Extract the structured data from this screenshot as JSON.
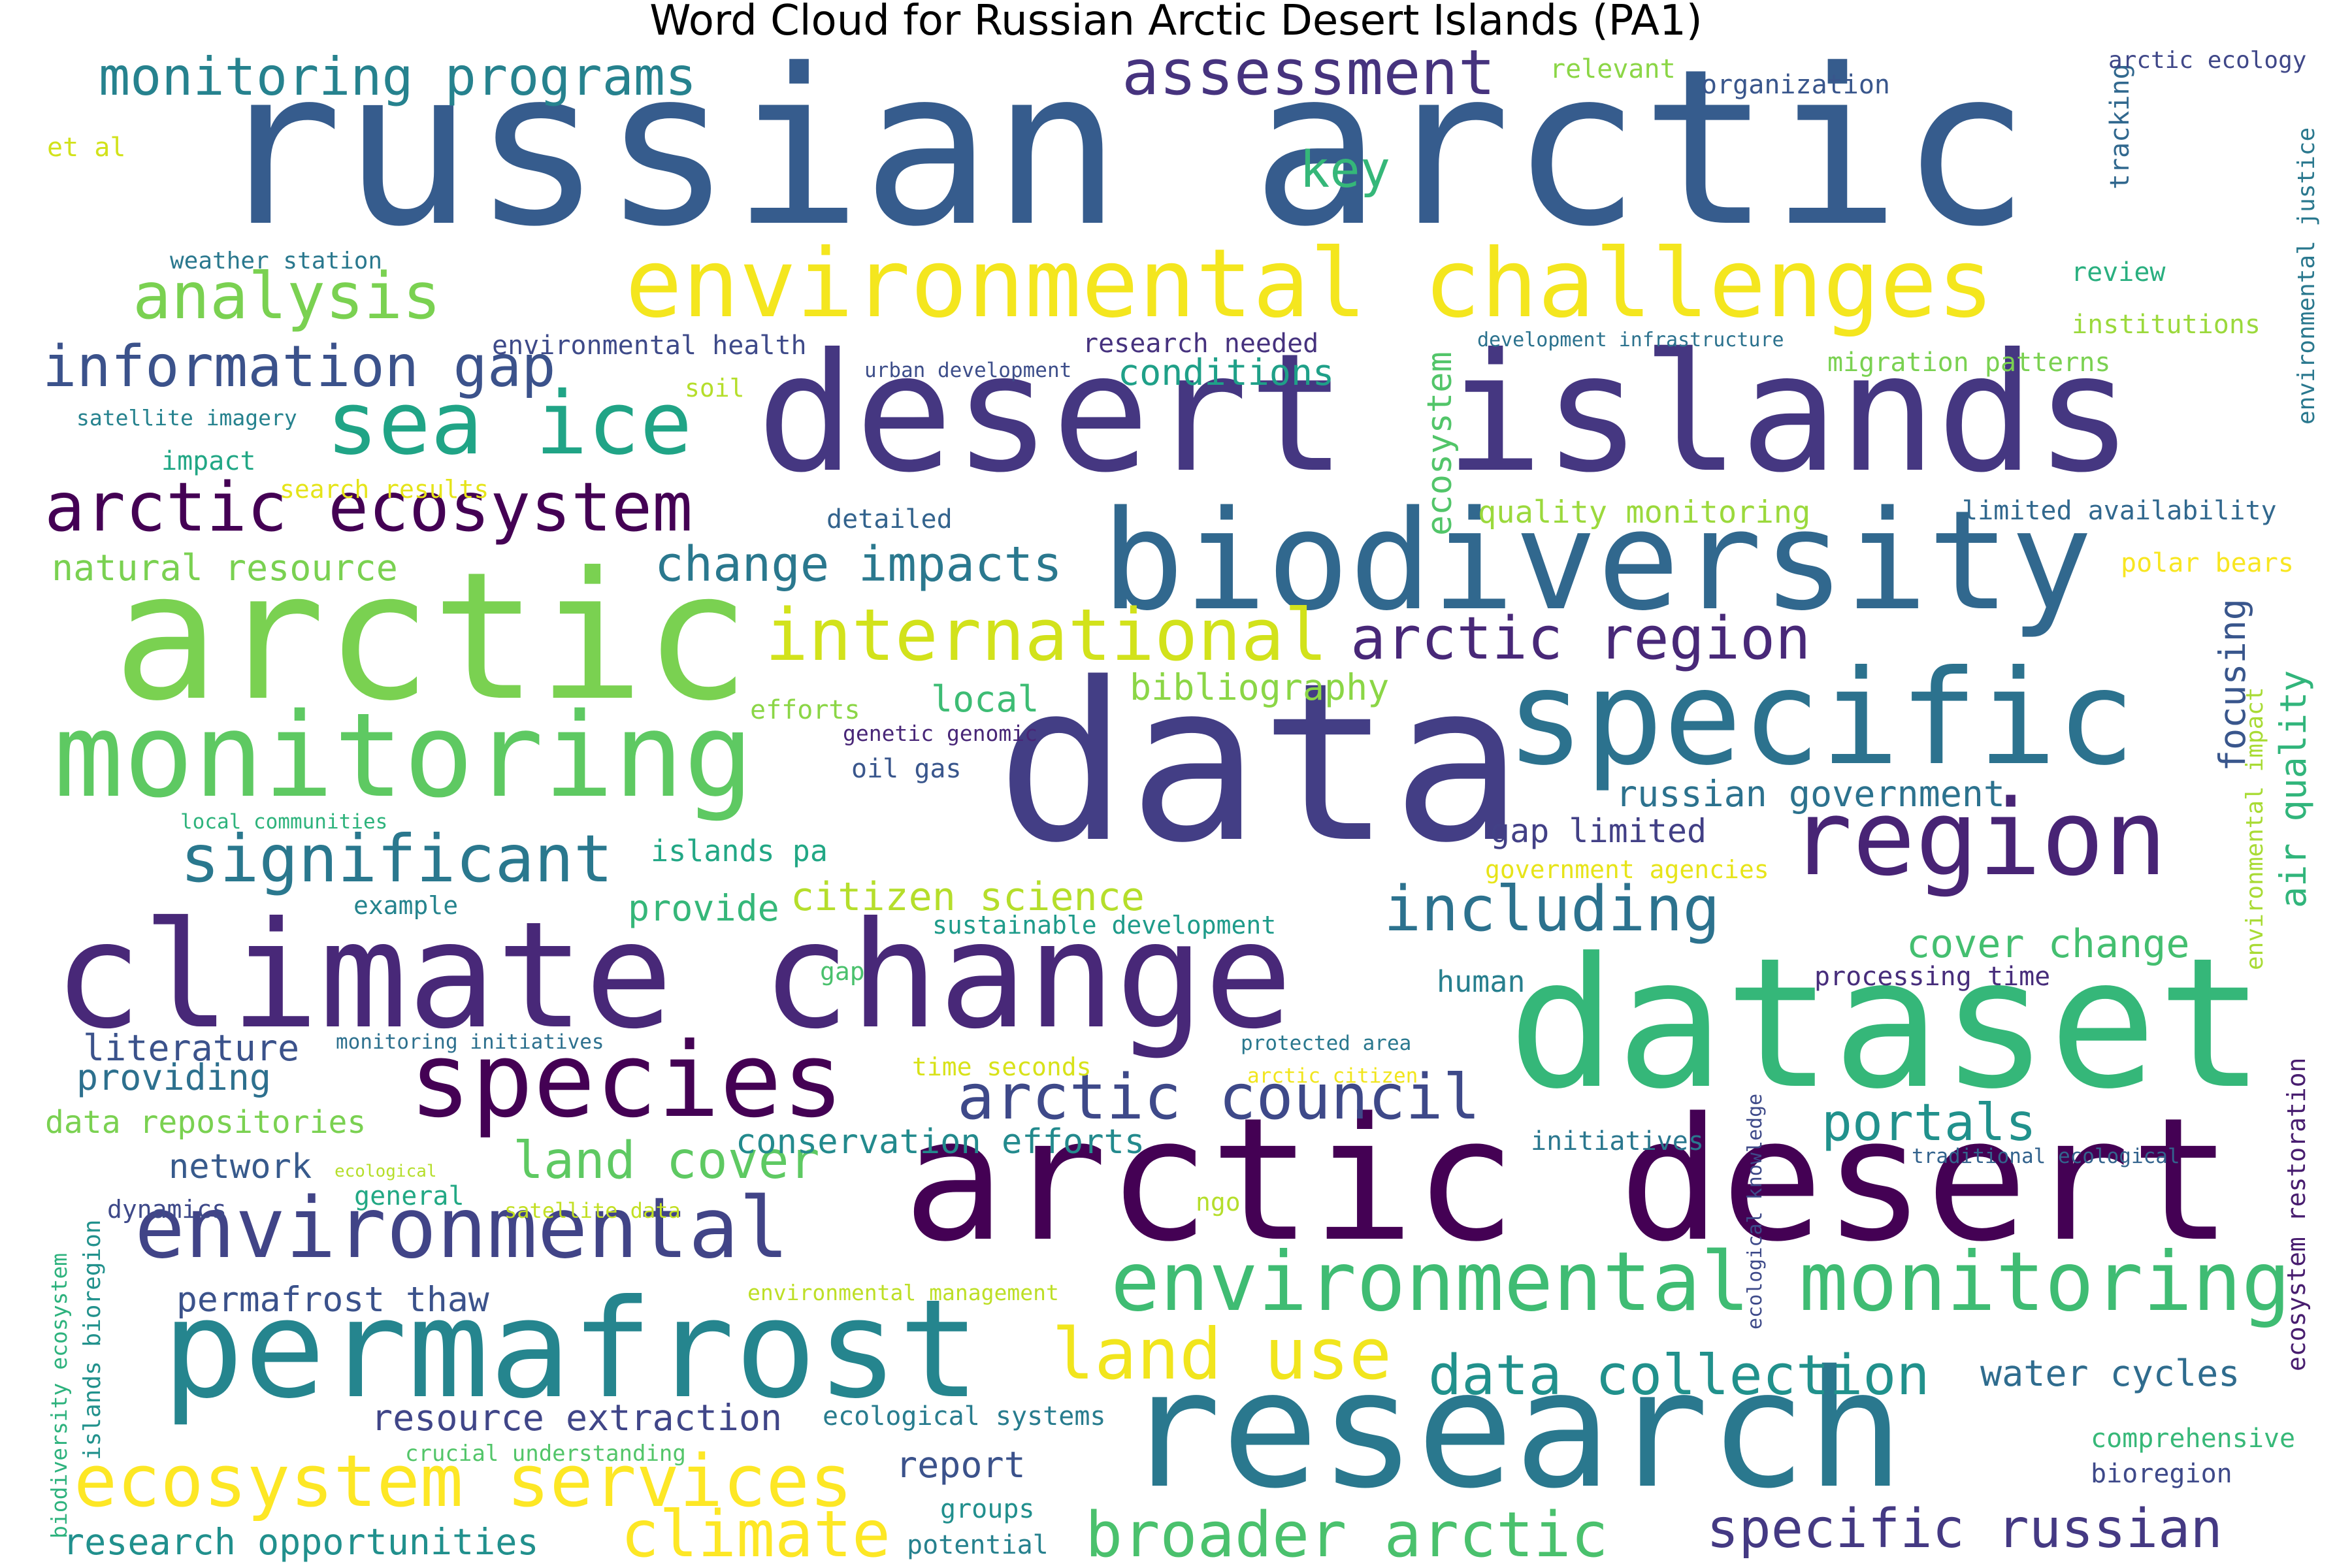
{
  "title": "Word Cloud for Russian Arctic Desert Islands (PA1)",
  "words": [
    {
      "text": "russian arctic",
      "color": "#365c8d"
    },
    {
      "text": "desert islands",
      "color": "#453781"
    },
    {
      "text": "data",
      "color": "#433e85"
    },
    {
      "text": "arctic desert",
      "color": "#440154"
    },
    {
      "text": "research",
      "color": "#2a788e"
    },
    {
      "text": "dataset",
      "color": "#35b779"
    },
    {
      "text": "arctic",
      "color": "#7ad151"
    },
    {
      "text": "climate change",
      "color": "#482878"
    },
    {
      "text": "biodiversity",
      "color": "#31688e"
    },
    {
      "text": "permafrost",
      "color": "#25858e"
    },
    {
      "text": "specific",
      "color": "#2c728e"
    },
    {
      "text": "monitoring",
      "color": "#5ec962"
    },
    {
      "text": "species",
      "color": "#440154"
    },
    {
      "text": "environmental challenges",
      "color": "#f4e61e"
    },
    {
      "text": "region",
      "color": "#482475"
    },
    {
      "text": "environmental",
      "color": "#414487"
    },
    {
      "text": "environmental monitoring",
      "color": "#3fbc73"
    },
    {
      "text": "sea ice",
      "color": "#20a486"
    },
    {
      "text": "international",
      "color": "#d2e21b"
    },
    {
      "text": "ecosystem services",
      "color": "#fde725"
    },
    {
      "text": "arctic ecosystem",
      "color": "#440154"
    },
    {
      "text": "significant",
      "color": "#2a788e"
    },
    {
      "text": "including",
      "color": "#2c728e"
    },
    {
      "text": "arctic council",
      "color": "#3e4989"
    },
    {
      "text": "land use",
      "color": "#f1e51d"
    },
    {
      "text": "information gap",
      "color": "#3b528b"
    },
    {
      "text": "analysis",
      "color": "#7ad151"
    },
    {
      "text": "assessment",
      "color": "#46337e"
    },
    {
      "text": "arctic region",
      "color": "#482878"
    },
    {
      "text": "broader arctic",
      "color": "#4ac16d"
    },
    {
      "text": "climate",
      "color": "#fde725"
    },
    {
      "text": "data collection",
      "color": "#21918c"
    },
    {
      "text": "specific russian",
      "color": "#443983"
    },
    {
      "text": "monitoring programs",
      "color": "#26828e"
    },
    {
      "text": "change impacts",
      "color": "#2a788e"
    },
    {
      "text": "land cover",
      "color": "#5ec962"
    },
    {
      "text": "portals",
      "color": "#21918c"
    },
    {
      "text": "key",
      "color": "#35b779"
    },
    {
      "text": "russian government",
      "color": "#2c728e"
    },
    {
      "text": "conservation efforts",
      "color": "#238a8d"
    },
    {
      "text": "citizen science",
      "color": "#b5de2b"
    },
    {
      "text": "cover change",
      "color": "#44bf70"
    },
    {
      "text": "air quality",
      "color": "#31b57b"
    },
    {
      "text": "focusing",
      "color": "#39568c"
    },
    {
      "text": "bibliography",
      "color": "#8bd646"
    },
    {
      "text": "ecosystem",
      "color": "#52c569"
    },
    {
      "text": "water cycles",
      "color": "#2f6c8e"
    },
    {
      "text": "local",
      "color": "#3dbc74"
    },
    {
      "text": "gap limited",
      "color": "#424086"
    },
    {
      "text": "resource extraction",
      "color": "#404688"
    },
    {
      "text": "permafrost thaw",
      "color": "#3b528b"
    },
    {
      "text": "natural resource",
      "color": "#7ad151"
    },
    {
      "text": "report",
      "color": "#3b528b"
    },
    {
      "text": "research opportunities",
      "color": "#21908d"
    },
    {
      "text": "literature",
      "color": "#3b528b"
    },
    {
      "text": "providing",
      "color": "#2d708e"
    },
    {
      "text": "network",
      "color": "#375a8c"
    },
    {
      "text": "provide",
      "color": "#35b779"
    },
    {
      "text": "conditions",
      "color": "#1fa088"
    },
    {
      "text": "data repositories",
      "color": "#7ad151"
    },
    {
      "text": "quality monitoring",
      "color": "#9bd93c"
    },
    {
      "text": "human",
      "color": "#277f8e"
    },
    {
      "text": "islands pa",
      "color": "#22a785"
    },
    {
      "text": "oil gas",
      "color": "#39568c"
    },
    {
      "text": "institutions",
      "color": "#9bd93c"
    },
    {
      "text": "migration patterns",
      "color": "#7ad151"
    },
    {
      "text": "limited availability",
      "color": "#31688e"
    },
    {
      "text": "ecological systems",
      "color": "#287c8e"
    },
    {
      "text": "processing time",
      "color": "#472d7b"
    },
    {
      "text": "comprehensive",
      "color": "#37b878"
    },
    {
      "text": "bioregion",
      "color": "#3e4989"
    },
    {
      "text": "tracking",
      "color": "#31688e"
    },
    {
      "text": "review",
      "color": "#29af7f"
    },
    {
      "text": "initiatives",
      "color": "#2a778e"
    },
    {
      "text": "ecosystem restoration",
      "color": "#481d6f"
    },
    {
      "text": "environmental impact",
      "color": "#a8db34"
    },
    {
      "text": "environmental justice",
      "color": "#2a788e"
    },
    {
      "text": "arctic ecology",
      "color": "#3f4788"
    },
    {
      "text": "organization",
      "color": "#39568c"
    },
    {
      "text": "relevant",
      "color": "#8bd646"
    },
    {
      "text": "et al",
      "color": "#d2e21b"
    },
    {
      "text": "weather station",
      "color": "#2a788e"
    },
    {
      "text": "environmental health",
      "color": "#3e4a89"
    },
    {
      "text": "research needed",
      "color": "#46327e"
    },
    {
      "text": "urban development",
      "color": "#3d4e8a"
    },
    {
      "text": "development infrastructure",
      "color": "#2c728e"
    },
    {
      "text": "soil",
      "color": "#b5de2b"
    },
    {
      "text": "satellite imagery",
      "color": "#26828e"
    },
    {
      "text": "impact",
      "color": "#22a785"
    },
    {
      "text": "search results",
      "color": "#e5e419"
    },
    {
      "text": "detailed",
      "color": "#33638d"
    },
    {
      "text": "polar bears",
      "color": "#f8e621"
    },
    {
      "text": "efforts",
      "color": "#8bd646"
    },
    {
      "text": "genetic genomic",
      "color": "#482677"
    },
    {
      "text": "local communities",
      "color": "#2eb37c"
    },
    {
      "text": "example",
      "color": "#25848e"
    },
    {
      "text": "government agencies",
      "color": "#e7e419"
    },
    {
      "text": "sustainable development",
      "color": "#1e9b8a"
    },
    {
      "text": "gap",
      "color": "#4ac16d"
    },
    {
      "text": "monitoring initiatives",
      "color": "#2d708e"
    },
    {
      "text": "time seconds",
      "color": "#d8e219"
    },
    {
      "text": "protected area",
      "color": "#2a788e"
    },
    {
      "text": "arctic citizen",
      "color": "#f1e51d"
    },
    {
      "text": "dynamics",
      "color": "#3e4989"
    },
    {
      "text": "ecological",
      "color": "#b5de2b"
    },
    {
      "text": "general",
      "color": "#22a884"
    },
    {
      "text": "satellite data",
      "color": "#c2df23"
    },
    {
      "text": "ngo",
      "color": "#b5de2b"
    },
    {
      "text": "traditional ecological",
      "color": "#33638d"
    },
    {
      "text": "ecological knowledge",
      "color": "#3e4a89"
    },
    {
      "text": "environmental management",
      "color": "#bddf26"
    },
    {
      "text": "crucial understanding",
      "color": "#52c569"
    },
    {
      "text": "groups",
      "color": "#218f8d"
    },
    {
      "text": "potential",
      "color": "#26818e"
    },
    {
      "text": "biodiversity ecosystem",
      "color": "#2db27d"
    },
    {
      "text": "islands bioregion",
      "color": "#21918c"
    }
  ]
}
